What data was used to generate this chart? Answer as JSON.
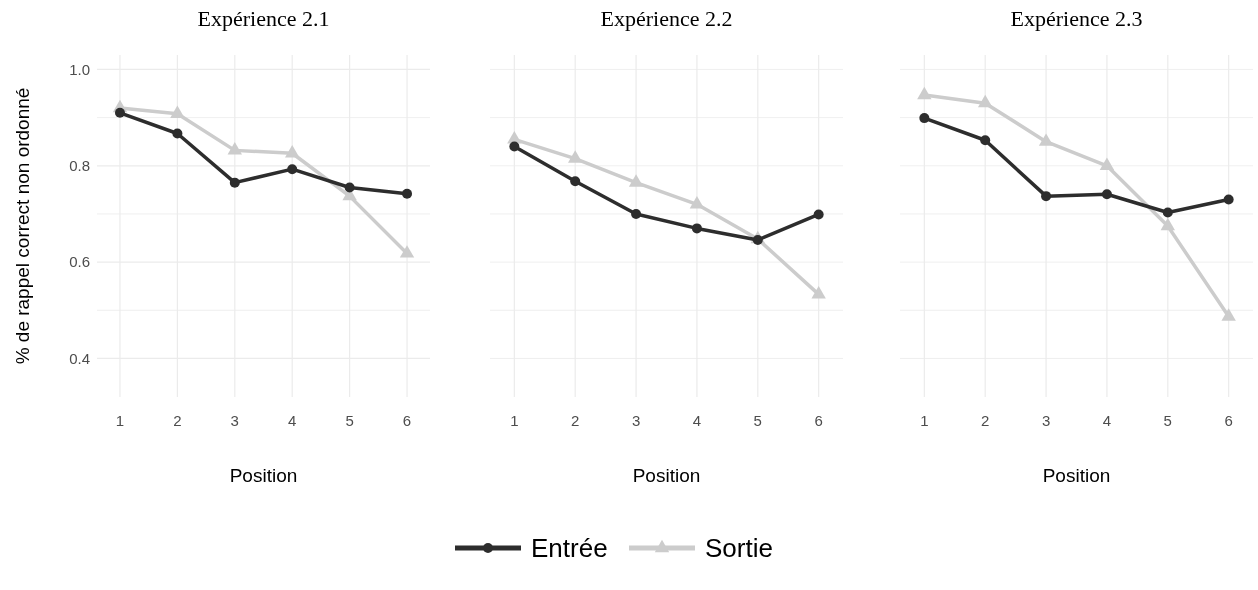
{
  "chart_data": [
    {
      "type": "line",
      "title": "Expérience 2.1",
      "xlabel": "Position",
      "ylabel": "% de rappel correct non ordonné",
      "x": [
        1,
        2,
        3,
        4,
        5,
        6
      ],
      "xlim": [
        0.6,
        6.4
      ],
      "xticks": [
        1,
        2,
        3,
        4,
        5,
        6
      ],
      "ylim": [
        0.32,
        1.03
      ],
      "yticks": [
        {
          "value": 0.4,
          "label": "0.4"
        },
        {
          "value": 0.5,
          "label": null
        },
        {
          "value": 0.6,
          "label": "0.6"
        },
        {
          "value": 0.7,
          "label": null
        },
        {
          "value": 0.8,
          "label": "0.8"
        },
        {
          "value": 0.9,
          "label": null
        },
        {
          "value": 1.0,
          "label": "1.0"
        }
      ],
      "grid": true,
      "legend": "bottom",
      "series": [
        {
          "name": "Entrée",
          "color": "#2d2d2d",
          "marker": "circle",
          "values": [
            0.91,
            0.867,
            0.765,
            0.793,
            0.755,
            0.742
          ]
        },
        {
          "name": "Sortie",
          "color": "#cccccc",
          "marker": "triangle",
          "values": [
            0.92,
            0.908,
            0.832,
            0.826,
            0.737,
            0.618
          ]
        }
      ]
    },
    {
      "type": "line",
      "title": "Expérience 2.2",
      "xlabel": "Position",
      "x": [
        1,
        2,
        3,
        4,
        5,
        6
      ],
      "xlim": [
        0.6,
        6.4
      ],
      "xticks": [
        1,
        2,
        3,
        4,
        5,
        6
      ],
      "ylim": [
        0.32,
        1.03
      ],
      "yticks": [
        {
          "value": 0.4,
          "label": null
        },
        {
          "value": 0.5,
          "label": null
        },
        {
          "value": 0.6,
          "label": null
        },
        {
          "value": 0.7,
          "label": null
        },
        {
          "value": 0.8,
          "label": null
        },
        {
          "value": 0.9,
          "label": null
        },
        {
          "value": 1.0,
          "label": null
        }
      ],
      "tick_labels": "x",
      "grid": true,
      "series": [
        {
          "color": "#2d2d2d",
          "marker": "circle",
          "values": [
            0.84,
            0.768,
            0.7,
            0.67,
            0.646,
            0.699
          ]
        },
        {
          "color": "#cccccc",
          "marker": "triangle",
          "values": [
            0.855,
            0.815,
            0.765,
            0.72,
            0.648,
            0.533
          ]
        }
      ]
    },
    {
      "type": "line",
      "title": "Expérience 2.3",
      "xlabel": "Position",
      "x": [
        1,
        2,
        3,
        4,
        5,
        6
      ],
      "xlim": [
        0.6,
        6.4
      ],
      "xticks": [
        1,
        2,
        3,
        4,
        5,
        6
      ],
      "ylim": [
        0.32,
        1.03
      ],
      "yticks": [
        {
          "value": 0.4,
          "label": null
        },
        {
          "value": 0.5,
          "label": null
        },
        {
          "value": 0.6,
          "label": null
        },
        {
          "value": 0.7,
          "label": null
        },
        {
          "value": 0.8,
          "label": null
        },
        {
          "value": 0.9,
          "label": null
        },
        {
          "value": 1.0,
          "label": null
        }
      ],
      "tick_labels": "x",
      "grid": true,
      "series": [
        {
          "color": "#2d2d2d",
          "marker": "circle",
          "values": [
            0.899,
            0.853,
            0.737,
            0.741,
            0.703,
            0.73
          ]
        },
        {
          "color": "#cccccc",
          "marker": "triangle",
          "values": [
            0.947,
            0.93,
            0.85,
            0.8,
            0.675,
            0.487
          ]
        }
      ]
    }
  ]
}
